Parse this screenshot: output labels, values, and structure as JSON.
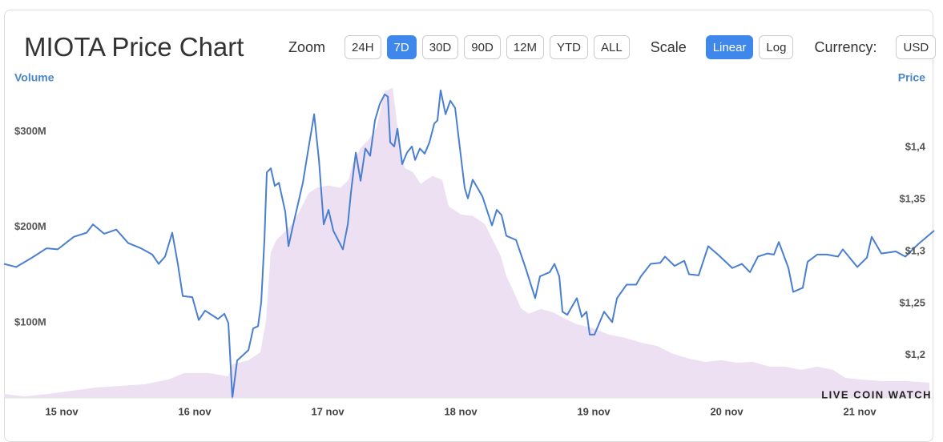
{
  "header": {
    "title": "MIOTA Price Chart",
    "zoom_label": "Zoom",
    "zoom_options": [
      "24H",
      "7D",
      "30D",
      "90D",
      "12M",
      "YTD",
      "ALL"
    ],
    "zoom_active": 1,
    "scale_label": "Scale",
    "scale_options": [
      "Linear",
      "Log"
    ],
    "scale_active": 0,
    "currency_label": "Currency:",
    "currency_options": [
      "USD"
    ],
    "currency_active": null
  },
  "chart_data": {
    "type": "line",
    "ylabel": "Volume",
    "y2label": "Price",
    "watermark": "LIVE COIN WATCH",
    "xlim": [
      -0.434,
      6.56
    ],
    "xticks": [
      {
        "value": 0,
        "label": "15 nov"
      },
      {
        "value": 1,
        "label": "16 nov"
      },
      {
        "value": 2,
        "label": "17 nov"
      },
      {
        "value": 3,
        "label": "18 nov"
      },
      {
        "value": 4,
        "label": "19 nov"
      },
      {
        "value": 5,
        "label": "20 nov"
      },
      {
        "value": 6,
        "label": "21 nov"
      }
    ],
    "ylim": [
      21000000,
      350000000
    ],
    "yticks": [
      {
        "value": 100000000,
        "label": "$100M"
      },
      {
        "value": 200000000,
        "label": "$200M"
      },
      {
        "value": 300000000,
        "label": "$300M"
      }
    ],
    "y2lim": [
      1.159,
      1.461
    ],
    "y2ticks": [
      {
        "value": 1.2,
        "label": "$1,2"
      },
      {
        "value": 1.25,
        "label": "$1,25"
      },
      {
        "value": 1.3,
        "label": "$1,3"
      },
      {
        "value": 1.35,
        "label": "$1,35"
      },
      {
        "value": 1.4,
        "label": "$1,4"
      }
    ],
    "grid": false,
    "x": [
      -0.434,
      -0.343,
      -0.223,
      -0.114,
      -0.03,
      0.09,
      0.187,
      0.235,
      0.319,
      0.41,
      0.5,
      0.596,
      0.681,
      0.729,
      0.777,
      0.831,
      0.873,
      0.91,
      0.982,
      1.03,
      1.078,
      1.175,
      1.223,
      1.253,
      1.283,
      1.319,
      1.404,
      1.44,
      1.476,
      1.5,
      1.524,
      1.542,
      1.572,
      1.602,
      1.633,
      1.681,
      1.705,
      1.741,
      1.813,
      1.855,
      1.898,
      1.934,
      1.97,
      2.006,
      2.042,
      2.114,
      2.151,
      2.175,
      2.211,
      2.247,
      2.283,
      2.319,
      2.355,
      2.392,
      2.428,
      2.452,
      2.47,
      2.5,
      2.524,
      2.56,
      2.596,
      2.633,
      2.657,
      2.693,
      2.729,
      2.765,
      2.801,
      2.825,
      2.849,
      2.886,
      2.922,
      2.958,
      2.994,
      3.03,
      3.054,
      3.09,
      3.163,
      3.235,
      3.271,
      3.307,
      3.343,
      3.416,
      3.488,
      3.56,
      3.596,
      3.669,
      3.705,
      3.741,
      3.765,
      3.801,
      3.873,
      3.91,
      3.946,
      3.97,
      4.006,
      4.078,
      4.139,
      4.175,
      4.247,
      4.319,
      4.355,
      4.428,
      4.5,
      4.536,
      4.608,
      4.681,
      4.717,
      4.789,
      4.861,
      4.934,
      5.042,
      5.114,
      5.175,
      5.235,
      5.307,
      5.355,
      5.392,
      5.464,
      5.5,
      5.572,
      5.608,
      5.681,
      5.753,
      5.837,
      5.873,
      5.982,
      6.054,
      6.09,
      6.163,
      6.271,
      6.343,
      6.44,
      6.56
    ],
    "series": [
      {
        "type": "area",
        "color": "#ece0f2",
        "x": [
          -0.434,
          -0.283,
          -0.102,
          0.078,
          0.259,
          0.44,
          0.62,
          0.801,
          0.922,
          1.102,
          1.253,
          1.283,
          1.404,
          1.494,
          1.536,
          1.572,
          1.614,
          1.675,
          1.735,
          1.795,
          1.855,
          1.916,
          2.006,
          2.096,
          2.157,
          2.187,
          2.247,
          2.307,
          2.367,
          2.428,
          2.488,
          2.518,
          2.548,
          2.578,
          2.639,
          2.699,
          2.789,
          2.861,
          2.91,
          3.0,
          3.09,
          3.181,
          3.241,
          3.301,
          3.343,
          3.392,
          3.452,
          3.512,
          3.602,
          3.693,
          3.783,
          3.873,
          3.994,
          4.114,
          4.235,
          4.355,
          4.476,
          4.596,
          4.717,
          4.837,
          4.958,
          5.078,
          5.199,
          5.319,
          5.44,
          5.56,
          5.681,
          5.801,
          5.892,
          6.012,
          6.163,
          6.343,
          6.524
        ],
        "values": [
          25200000,
          22700000,
          25200000,
          28600000,
          32000000,
          33600000,
          35300000,
          40300000,
          47100000,
          47100000,
          43700000,
          56300000,
          60500000,
          68900000,
          102500000,
          173900000,
          186600000,
          195000000,
          203400000,
          218500000,
          235300000,
          241200000,
          243700000,
          241200000,
          249600000,
          266400000,
          283200000,
          291600000,
          304200000,
          342000000,
          346200000,
          312600000,
          283200000,
          262200000,
          258000000,
          245400000,
          253800000,
          249600000,
          221900000,
          213400000,
          211800000,
          203400000,
          186600000,
          169800000,
          148700000,
          134500000,
          115100000,
          109300000,
          114300000,
          110900000,
          104200000,
          98300000,
          94100000,
          87400000,
          84000000,
          79000000,
          75600000,
          67200000,
          62200000,
          58800000,
          60500000,
          58000000,
          58800000,
          53800000,
          53800000,
          50400000,
          53800000,
          50400000,
          42000000,
          40300000,
          38700000,
          38700000,
          37000000
        ]
      },
      {
        "type": "line",
        "color": "#4a7fd0",
        "axis": "y2",
        "values": [
          1.288,
          1.285,
          1.294,
          1.303,
          1.302,
          1.314,
          1.318,
          1.326,
          1.317,
          1.321,
          1.308,
          1.303,
          1.297,
          1.288,
          1.295,
          1.318,
          1.288,
          1.257,
          1.256,
          1.234,
          1.243,
          1.235,
          1.24,
          1.231,
          1.159,
          1.195,
          1.205,
          1.226,
          1.228,
          1.251,
          1.311,
          1.376,
          1.38,
          1.363,
          1.366,
          1.338,
          1.305,
          1.326,
          1.366,
          1.399,
          1.432,
          1.388,
          1.326,
          1.34,
          1.32,
          1.302,
          1.326,
          1.357,
          1.395,
          1.368,
          1.399,
          1.392,
          1.426,
          1.442,
          1.451,
          1.449,
          1.405,
          1.401,
          1.418,
          1.384,
          1.395,
          1.401,
          1.388,
          1.399,
          1.394,
          1.405,
          1.423,
          1.426,
          1.455,
          1.432,
          1.445,
          1.438,
          1.399,
          1.361,
          1.351,
          1.369,
          1.353,
          1.325,
          1.34,
          1.335,
          1.315,
          1.311,
          1.284,
          1.255,
          1.276,
          1.28,
          1.288,
          1.276,
          1.242,
          1.239,
          1.255,
          1.237,
          1.242,
          1.22,
          1.22,
          1.242,
          1.232,
          1.255,
          1.268,
          1.268,
          1.276,
          1.288,
          1.289,
          1.295,
          1.286,
          1.291,
          1.278,
          1.277,
          1.305,
          1.297,
          1.284,
          1.288,
          1.28,
          1.295,
          1.298,
          1.297,
          1.309,
          1.284,
          1.261,
          1.265,
          1.29,
          1.297,
          1.297,
          1.295,
          1.302,
          1.285,
          1.294,
          1.314,
          1.298,
          1.3,
          1.295,
          1.307,
          1.32
        ]
      }
    ]
  }
}
